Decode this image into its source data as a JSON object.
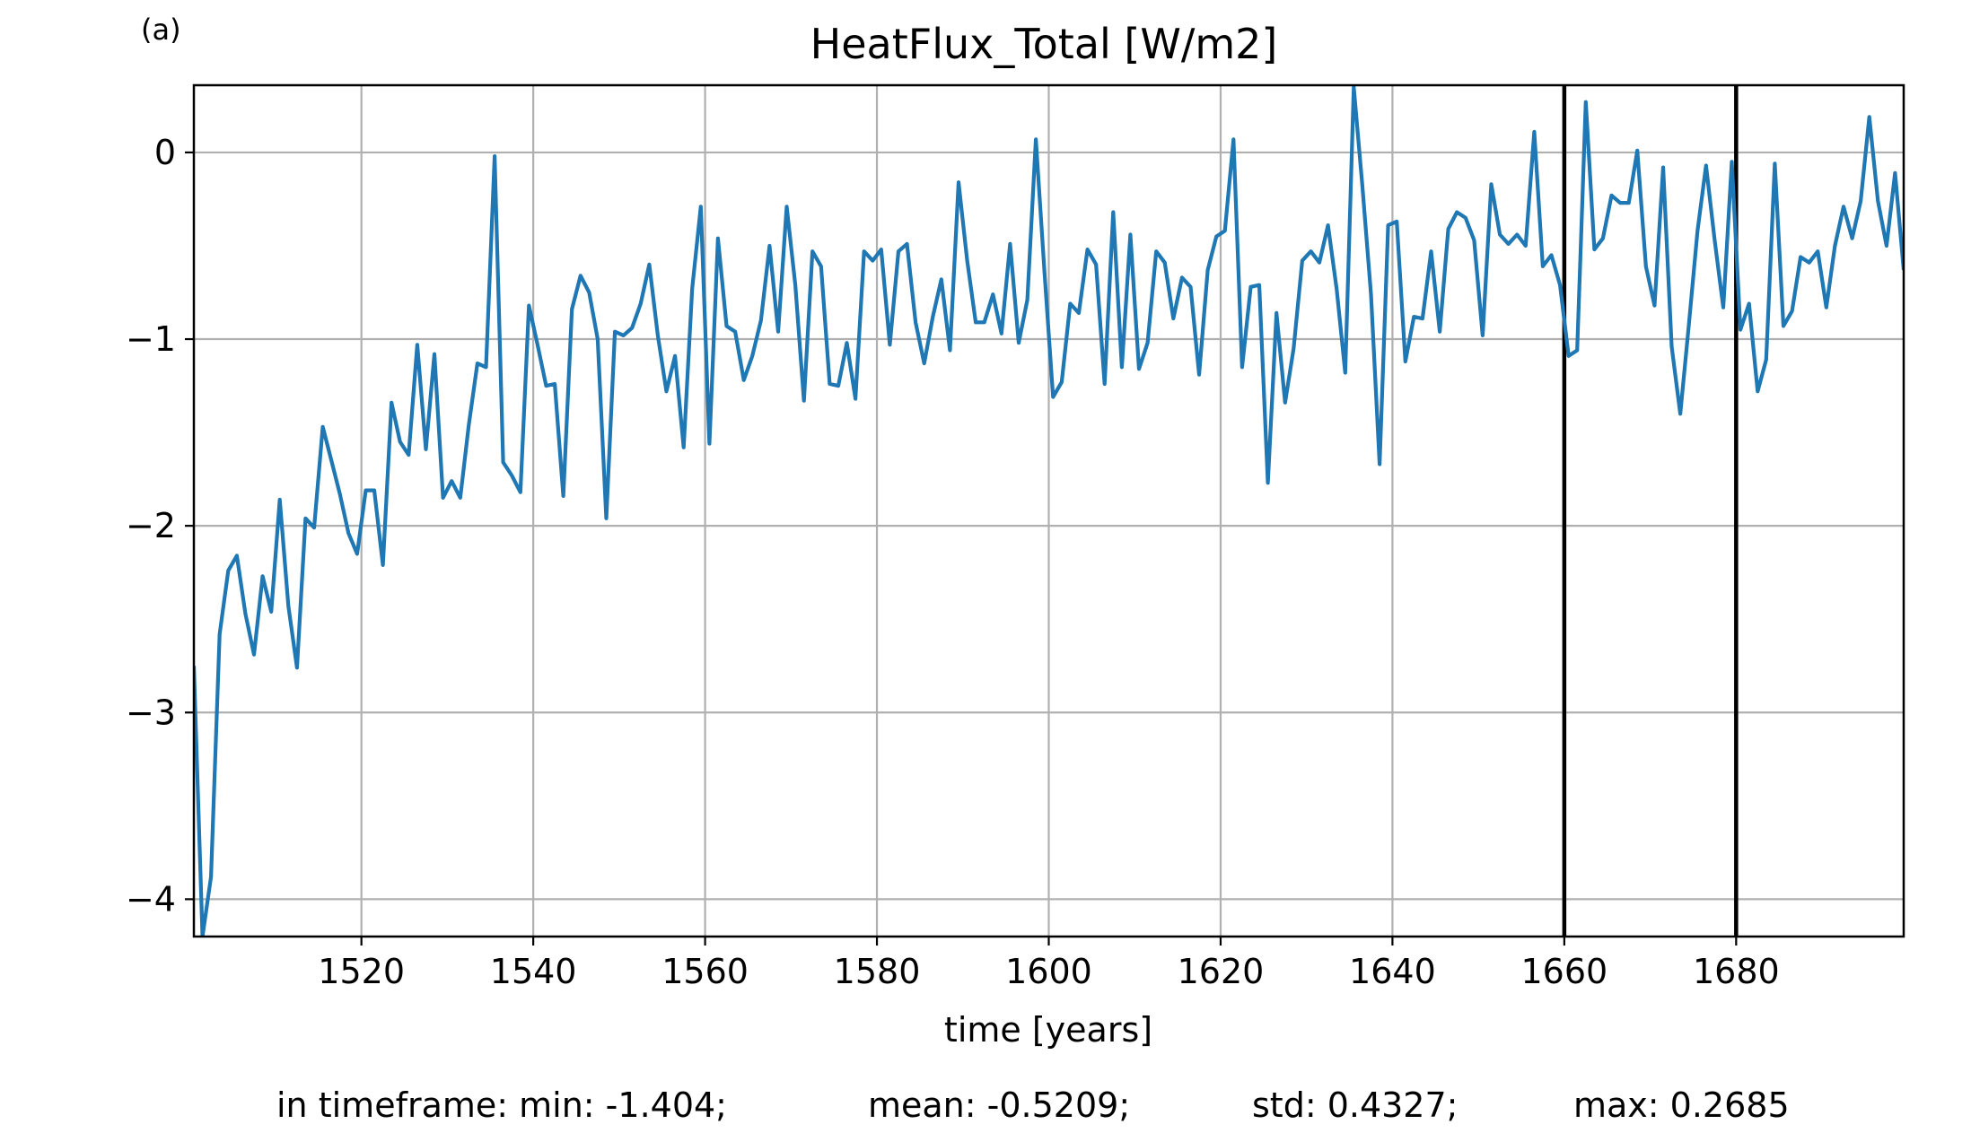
{
  "panel_label": "(a)",
  "stats": {
    "min": "in timeframe: min: -1.404;",
    "mean": "mean: -0.5209;",
    "std": "std: 0.4327;",
    "max": "max: 0.2685"
  },
  "chart_data": {
    "type": "line",
    "title": "HeatFlux_Total [W/m2]",
    "xlabel": "time [years]",
    "ylabel": "",
    "xlim": [
      1500.5,
      1699.5
    ],
    "ylim": [
      -4.2,
      0.36
    ],
    "xticks": [
      1520,
      1540,
      1560,
      1580,
      1600,
      1620,
      1640,
      1660,
      1680
    ],
    "xtick_labels": [
      "1520",
      "1540",
      "1560",
      "1580",
      "1600",
      "1620",
      "1640",
      "1660",
      "1680"
    ],
    "yticks": [
      0,
      -1,
      -2,
      -3,
      -4
    ],
    "ytick_labels": [
      "0",
      "−1",
      "−2",
      "−3",
      "−4"
    ],
    "grid": true,
    "line_color": "#1f77b4",
    "vertical_markers": [
      1660,
      1680
    ],
    "series": [
      {
        "x": [
          1500.5,
          1501.5,
          1502.5,
          1503.5,
          1504.5,
          1505.5,
          1506.5,
          1507.5,
          1508.5,
          1509.5,
          1510.5,
          1511.5,
          1512.5,
          1513.5,
          1514.5,
          1515.5,
          1516.5,
          1517.5,
          1518.5,
          1519.5,
          1520.5,
          1521.5,
          1522.5,
          1523.5,
          1524.5,
          1525.5,
          1526.5,
          1527.5,
          1528.5,
          1529.5,
          1530.5,
          1531.5,
          1532.5,
          1533.5,
          1534.5,
          1535.5,
          1536.5,
          1537.5,
          1538.5,
          1539.5,
          1540.5,
          1541.5,
          1542.5,
          1543.5,
          1544.5,
          1545.5,
          1546.5,
          1547.5,
          1548.5,
          1549.5,
          1550.5,
          1551.5,
          1552.5,
          1553.5,
          1554.5,
          1555.5,
          1556.5,
          1557.5,
          1558.5,
          1559.5,
          1560.5,
          1561.5,
          1562.5,
          1563.5,
          1564.5,
          1565.5,
          1566.5,
          1567.5,
          1568.5,
          1569.5,
          1570.5,
          1571.5,
          1572.5,
          1573.5,
          1574.5,
          1575.5,
          1576.5,
          1577.5,
          1578.5,
          1579.5,
          1580.5,
          1581.5,
          1582.5,
          1583.5,
          1584.5,
          1585.5,
          1586.5,
          1587.5,
          1588.5,
          1589.5,
          1590.5,
          1591.5,
          1592.5,
          1593.5,
          1594.5,
          1595.5,
          1596.5,
          1597.5,
          1598.5,
          1599.5,
          1600.5,
          1601.5,
          1602.5,
          1603.5,
          1604.5,
          1605.5,
          1606.5,
          1607.5,
          1608.5,
          1609.5,
          1610.5,
          1611.5,
          1612.5,
          1613.5,
          1614.5,
          1615.5,
          1616.5,
          1617.5,
          1618.5,
          1619.5,
          1620.5,
          1621.5,
          1622.5,
          1623.5,
          1624.5,
          1625.5,
          1626.5,
          1627.5,
          1628.5,
          1629.5,
          1630.5,
          1631.5,
          1632.5,
          1633.5,
          1634.5,
          1635.5,
          1636.5,
          1637.5,
          1638.5,
          1639.5,
          1640.5,
          1641.5,
          1642.5,
          1643.5,
          1644.5,
          1645.5,
          1646.5,
          1647.5,
          1648.5,
          1649.5,
          1650.5,
          1651.5,
          1652.5,
          1653.5,
          1654.5,
          1655.5,
          1656.5,
          1657.5,
          1658.5,
          1659.5,
          1660.5,
          1661.5,
          1662.5,
          1663.5,
          1664.5,
          1665.5,
          1666.5,
          1667.5,
          1668.5,
          1669.5,
          1670.5,
          1671.5,
          1672.5,
          1673.5,
          1674.5,
          1675.5,
          1676.5,
          1677.5,
          1678.5,
          1679.5,
          1680.5,
          1681.5,
          1682.5,
          1683.5,
          1684.5,
          1685.5,
          1686.5,
          1687.5,
          1688.5,
          1689.5,
          1690.5,
          1691.5,
          1692.5,
          1693.5,
          1694.5,
          1695.5,
          1696.5,
          1697.5,
          1698.5,
          1699.5
        ],
        "values": [
          -2.75,
          -4.2,
          -3.88,
          -2.58,
          -2.24,
          -2.16,
          -2.47,
          -2.69,
          -2.27,
          -2.46,
          -1.86,
          -2.43,
          -2.76,
          -1.96,
          -2.01,
          -1.47,
          -1.65,
          -1.83,
          -2.04,
          -2.15,
          -1.81,
          -1.81,
          -2.21,
          -1.34,
          -1.55,
          -1.62,
          -1.03,
          -1.59,
          -1.08,
          -1.85,
          -1.76,
          -1.85,
          -1.46,
          -1.13,
          -1.15,
          -0.02,
          -1.66,
          -1.73,
          -1.82,
          -0.82,
          -1.03,
          -1.25,
          -1.24,
          -1.84,
          -0.84,
          -0.66,
          -0.75,
          -1.0,
          -1.96,
          -0.96,
          -0.98,
          -0.94,
          -0.81,
          -0.6,
          -0.98,
          -1.28,
          -1.09,
          -1.58,
          -0.73,
          -0.29,
          -1.56,
          -0.46,
          -0.93,
          -0.96,
          -1.22,
          -1.09,
          -0.9,
          -0.5,
          -0.96,
          -0.29,
          -0.71,
          -1.33,
          -0.53,
          -0.61,
          -1.24,
          -1.25,
          -1.02,
          -1.32,
          -0.53,
          -0.58,
          -0.52,
          -1.03,
          -0.53,
          -0.49,
          -0.91,
          -1.13,
          -0.88,
          -0.68,
          -1.06,
          -0.16,
          -0.58,
          -0.91,
          -0.91,
          -0.76,
          -0.97,
          -0.49,
          -1.02,
          -0.79,
          0.07,
          -0.64,
          -1.31,
          -1.23,
          -0.81,
          -0.86,
          -0.52,
          -0.6,
          -1.24,
          -0.32,
          -1.15,
          -0.44,
          -1.16,
          -1.02,
          -0.53,
          -0.59,
          -0.89,
          -0.67,
          -0.72,
          -1.19,
          -0.63,
          -0.45,
          -0.42,
          0.07,
          -1.15,
          -0.72,
          -0.71,
          -1.77,
          -0.86,
          -1.34,
          -1.05,
          -0.58,
          -0.53,
          -0.59,
          -0.39,
          -0.73,
          -1.18,
          0.35,
          -0.18,
          -0.76,
          -1.67,
          -0.39,
          -0.37,
          -1.12,
          -0.88,
          -0.89,
          -0.53,
          -0.96,
          -0.41,
          -0.32,
          -0.35,
          -0.47,
          -0.98,
          -0.17,
          -0.44,
          -0.49,
          -0.44,
          -0.5,
          0.11,
          -0.61,
          -0.55,
          -0.71,
          -1.09,
          -1.06,
          0.27,
          -0.52,
          -0.46,
          -0.23,
          -0.27,
          -0.27,
          0.01,
          -0.61,
          -0.82,
          -0.08,
          -1.04,
          -1.4,
          -0.92,
          -0.42,
          -0.07,
          -0.47,
          -0.83,
          -0.05,
          -0.95,
          -0.81,
          -1.28,
          -1.11,
          -0.06,
          -0.93,
          -0.85,
          -0.56,
          -0.59,
          -0.53,
          -0.83,
          -0.5,
          -0.29,
          -0.46,
          -0.26,
          0.19,
          -0.26,
          -0.5,
          -0.11,
          -0.63
        ]
      }
    ]
  }
}
